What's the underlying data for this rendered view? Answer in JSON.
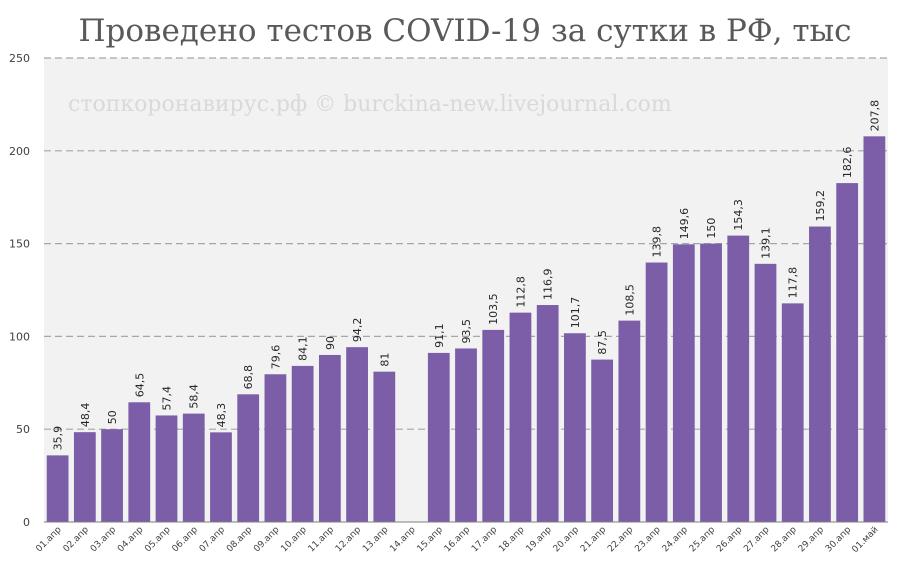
{
  "chart_data": {
    "type": "bar",
    "title": "Проведено тестов COVID-19 за сутки в РФ, тыс",
    "watermark": "стопкоронавирус.рф © burckina-new.livejournal.com",
    "xlabel": "",
    "ylabel": "",
    "ylim": [
      0,
      250
    ],
    "yticks": [
      0,
      50,
      100,
      150,
      200,
      250
    ],
    "grid": true,
    "bar_color": "#7b5ea7",
    "plot_background": "#f2f2f2",
    "categories": [
      "01.апр",
      "02.апр",
      "03.апр",
      "04.апр",
      "05.апр",
      "06.апр",
      "07.апр",
      "08.апр",
      "09.апр",
      "10.апр",
      "11.апр",
      "12.апр",
      "13.апр",
      "14.апр",
      "15.апр",
      "16.апр",
      "17.апр",
      "18.апр",
      "19.апр",
      "20.апр",
      "21.апр",
      "22.апр",
      "23.апр",
      "24.апр",
      "25.апр",
      "26.апр",
      "27.апр",
      "28.апр",
      "29.апр",
      "30.апр",
      "01.май"
    ],
    "values": [
      35.9,
      48.4,
      50,
      64.5,
      57.4,
      58.4,
      48.3,
      68.8,
      79.6,
      84.1,
      90,
      94.2,
      81,
      null,
      91.1,
      93.5,
      103.5,
      112.8,
      116.9,
      101.7,
      87.5,
      108.5,
      139.8,
      149.6,
      150,
      154.3,
      139.1,
      117.8,
      159.2,
      182.6,
      207.8
    ],
    "labels": [
      "35,9",
      "48,4",
      "50",
      "64,5",
      "57,4",
      "58,4",
      "48,3",
      "68,8",
      "79,6",
      "84,1",
      "90",
      "94,2",
      "81",
      "",
      "91,1",
      "93,5",
      "103,5",
      "112,8",
      "116,9",
      "101,7",
      "87,5",
      "108,5",
      "139,8",
      "149,6",
      "150",
      "154,3",
      "139,1",
      "117,8",
      "159,2",
      "182,6",
      "207,8"
    ]
  }
}
